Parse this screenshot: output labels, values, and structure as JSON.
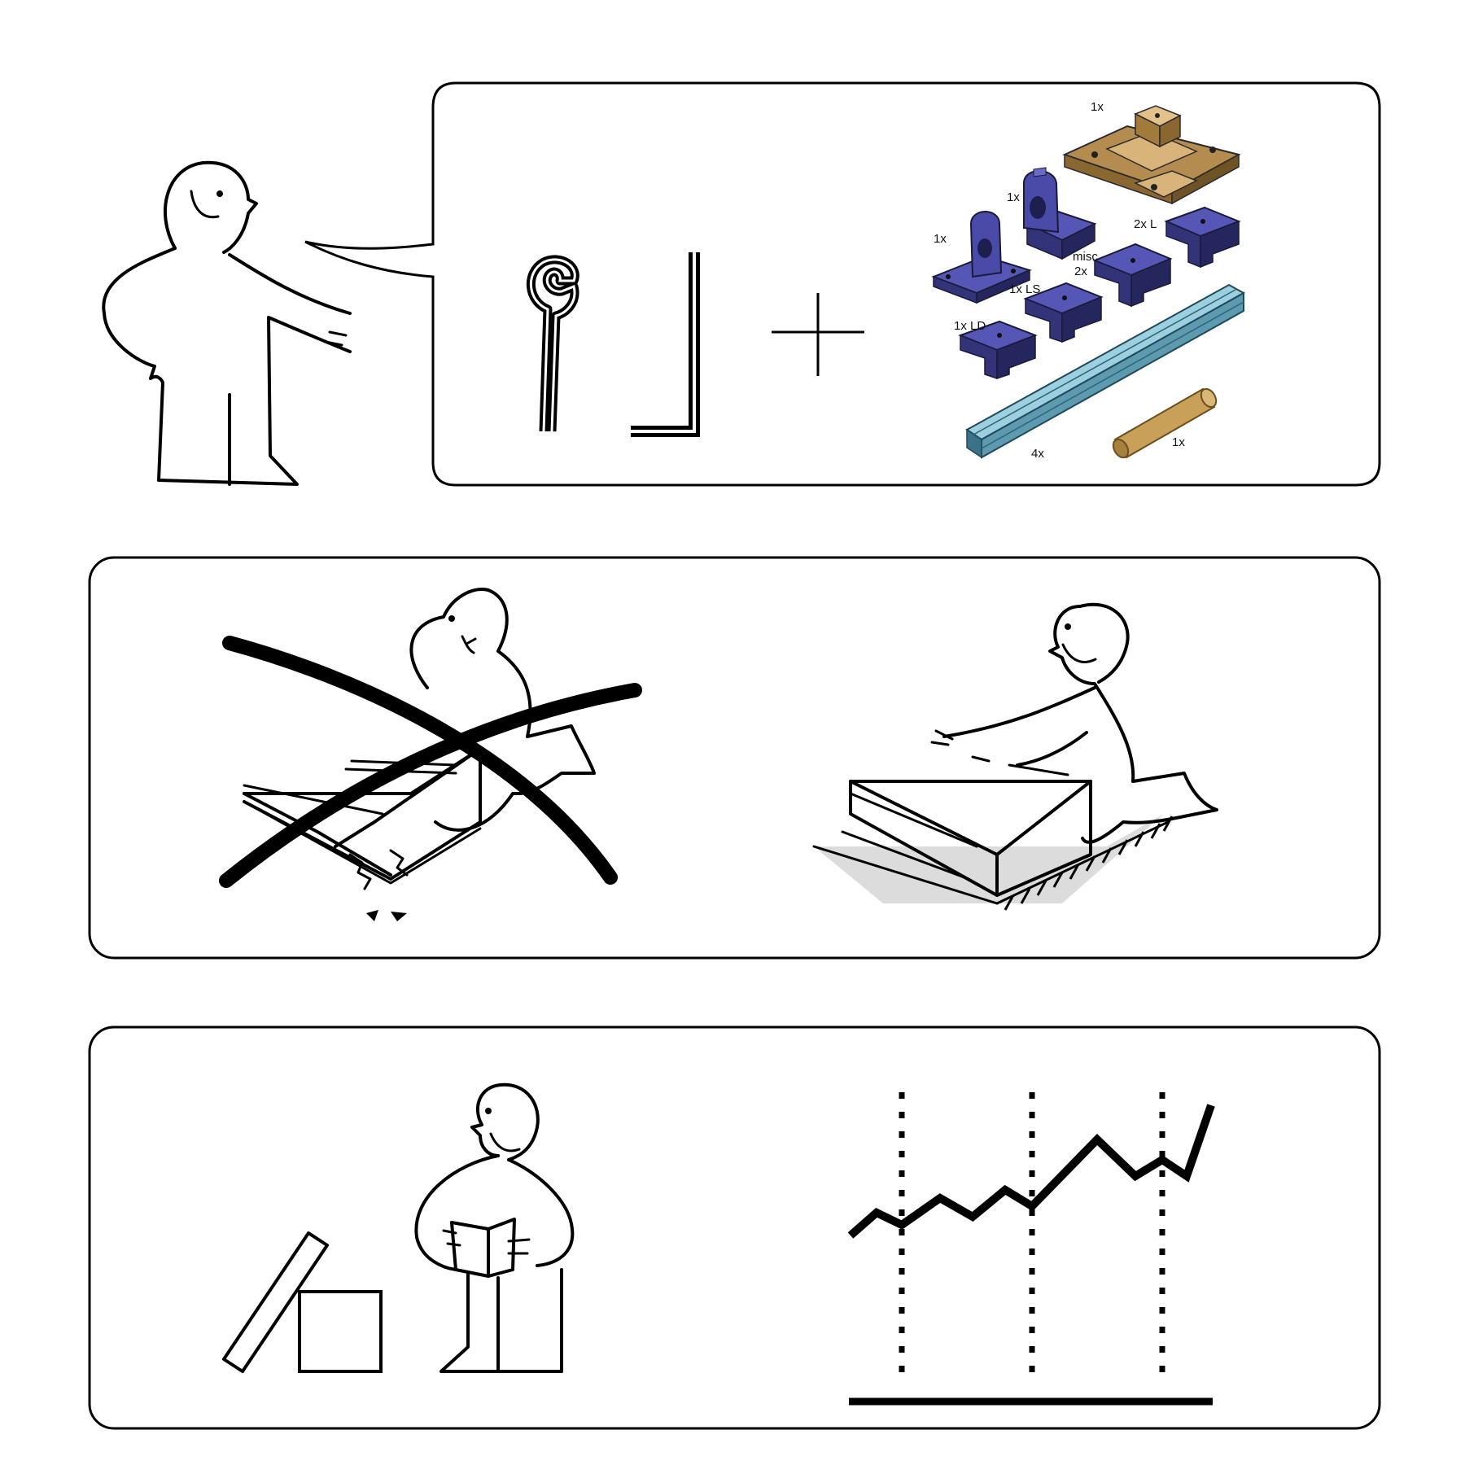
{
  "panel1": {
    "parts": [
      {
        "id": "base",
        "label": "1x"
      },
      {
        "id": "motor-mount",
        "label": "1x"
      },
      {
        "id": "bearing-mount",
        "label": "1x"
      },
      {
        "id": "l-bracket",
        "label": "2x L"
      },
      {
        "id": "misc-bracket",
        "label_line1": "misc",
        "label_line2": "2x"
      },
      {
        "id": "ls-bracket",
        "label": "1x LS"
      },
      {
        "id": "ld-bracket",
        "label": "1x LD"
      },
      {
        "id": "extrusion",
        "label": "4x"
      },
      {
        "id": "rod",
        "label": "1x"
      }
    ]
  },
  "colors": {
    "ink": "#000000",
    "tan_part": "#c9a264",
    "blue_part": "#4a4aa8",
    "extrusion": "#7fb8cc",
    "rod": "#c8a058",
    "rug": "#dcdcdc"
  }
}
